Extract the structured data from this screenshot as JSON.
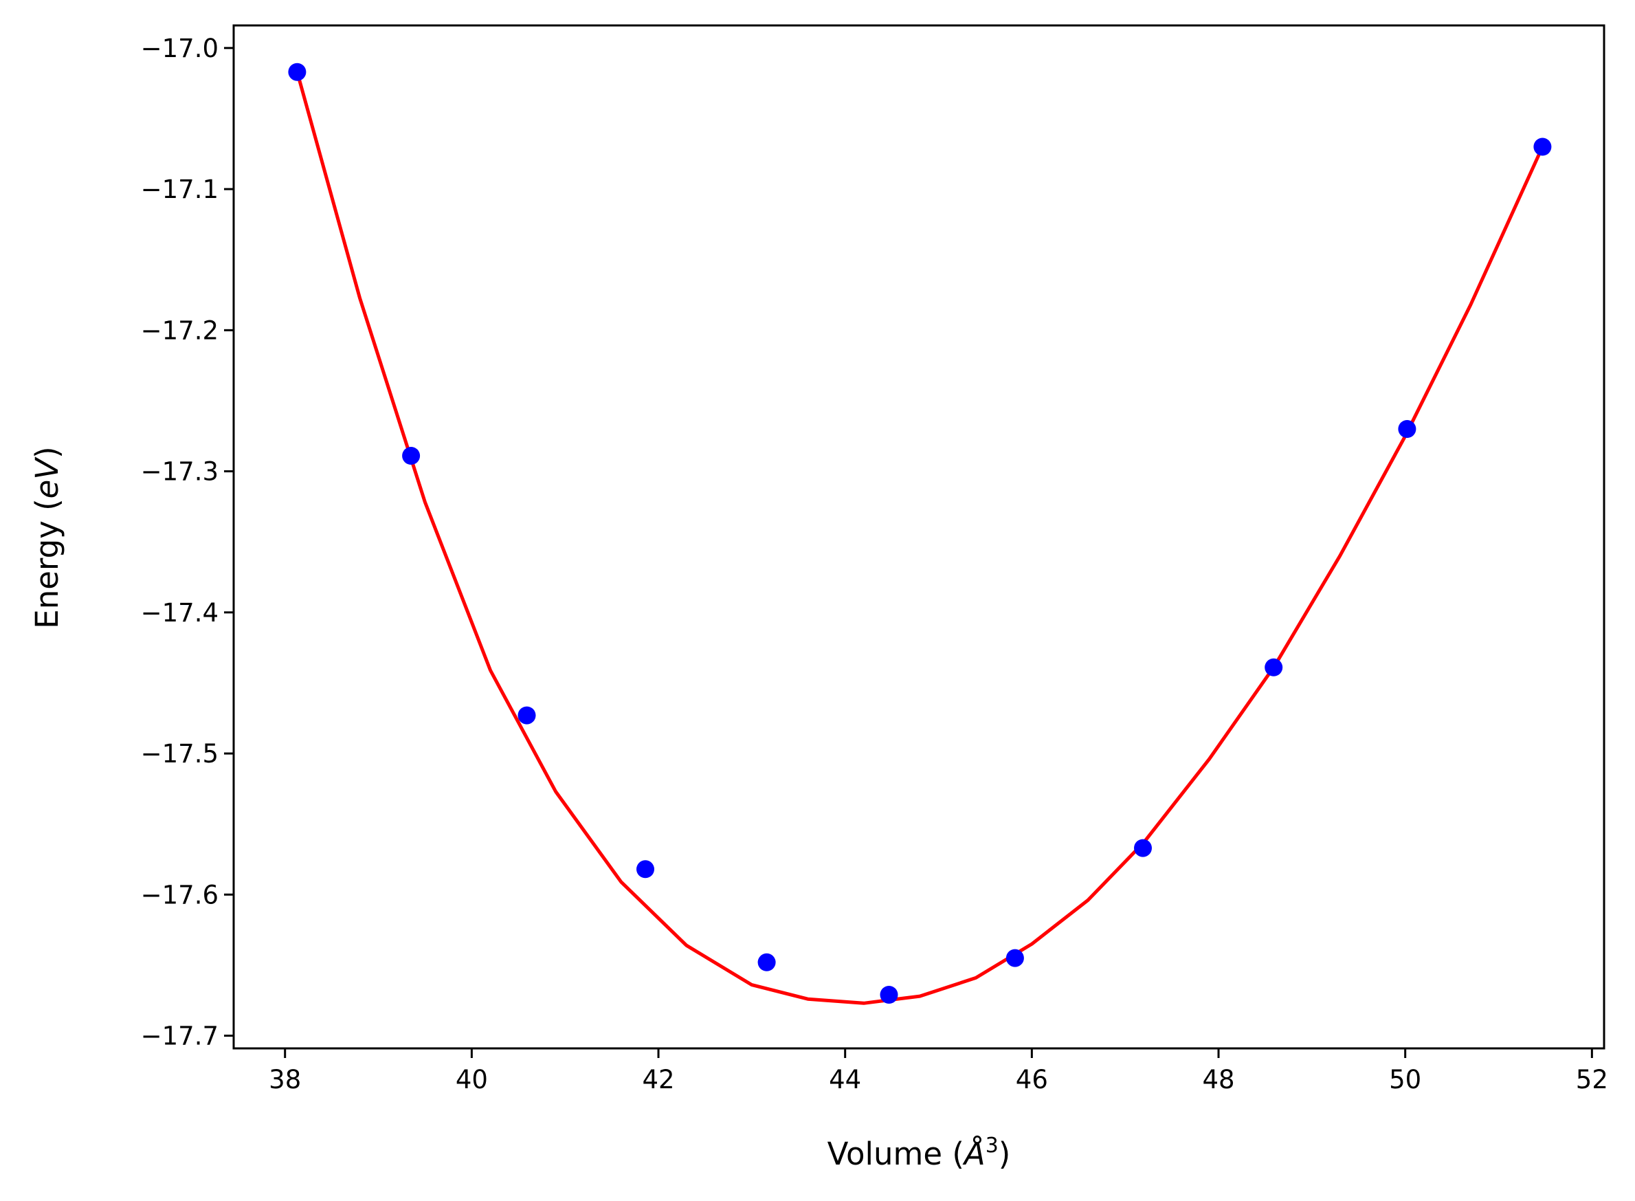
{
  "chart_data": {
    "type": "scatter",
    "title": "",
    "xlabel": "Volume (Å³)",
    "ylabel": "Energy (eV)",
    "xlabel_parts": {
      "prefix": "Volume (",
      "symbol": "Å",
      "sup": "3",
      "suffix": ")"
    },
    "ylabel_parts": {
      "prefix": "Energy (",
      "unit": "eV",
      "suffix": ")"
    },
    "xlim": [
      37.45,
      52.13
    ],
    "ylim": [
      -17.709,
      -16.984
    ],
    "x_ticks": [
      38,
      40,
      42,
      44,
      46,
      48,
      50,
      52
    ],
    "x_tick_labels": [
      "38",
      "40",
      "42",
      "44",
      "46",
      "48",
      "50",
      "52"
    ],
    "y_ticks": [
      -17.0,
      -17.1,
      -17.2,
      -17.3,
      -17.4,
      -17.5,
      -17.6,
      -17.7
    ],
    "y_tick_labels": [
      "−17.0",
      "−17.1",
      "−17.2",
      "−17.3",
      "−17.4",
      "−17.5",
      "−17.6",
      "−17.7"
    ],
    "grid": false,
    "series": [
      {
        "kind": "points",
        "color": "#0000ff",
        "x": [
          38.13,
          39.35,
          40.59,
          41.86,
          43.16,
          44.47,
          45.82,
          47.19,
          48.59,
          50.02,
          51.47
        ],
        "y": [
          -17.017,
          -17.289,
          -17.473,
          -17.582,
          -17.648,
          -17.671,
          -17.645,
          -17.567,
          -17.439,
          -17.27,
          -17.07
        ]
      },
      {
        "kind": "line",
        "color": "#ff0000",
        "x": [
          38.13,
          38.8,
          39.5,
          40.2,
          40.9,
          41.6,
          42.3,
          43.0,
          43.6,
          44.2,
          44.8,
          45.4,
          46.0,
          46.6,
          47.2,
          47.9,
          48.6,
          49.3,
          50.0,
          50.7,
          51.47
        ],
        "y": [
          -17.017,
          -17.177,
          -17.322,
          -17.441,
          -17.527,
          -17.591,
          -17.636,
          -17.664,
          -17.674,
          -17.677,
          -17.672,
          -17.659,
          -17.635,
          -17.604,
          -17.563,
          -17.504,
          -17.438,
          -17.36,
          -17.275,
          -17.182,
          -17.07
        ]
      }
    ]
  }
}
